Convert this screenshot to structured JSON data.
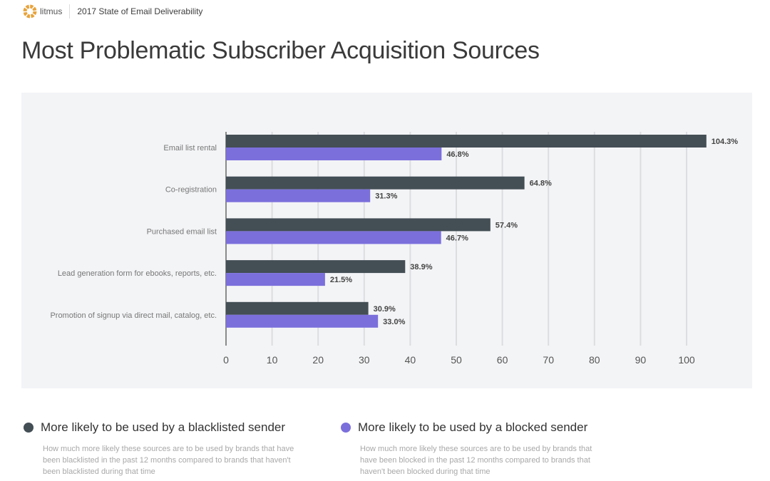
{
  "header": {
    "brand": "litmus",
    "report": "2017 State of Email Deliverability"
  },
  "title": "Most Problematic Subscriber Acquisition Sources",
  "colors": {
    "blacklisted": "#434e55",
    "blocked": "#7b6fdc"
  },
  "chart_data": {
    "type": "bar",
    "orientation": "horizontal",
    "grid": true,
    "xlim": [
      0,
      105
    ],
    "xticks": [
      0,
      10,
      20,
      30,
      40,
      50,
      60,
      70,
      80,
      90,
      100
    ],
    "categories": [
      "Email list rental",
      "Co-registration",
      "Purchased email list",
      "Lead generation form for ebooks, reports, etc.",
      "Promotion of signup via direct mail, catalog, etc."
    ],
    "series": [
      {
        "name": "More likely to be used by a blacklisted sender",
        "values": [
          104.3,
          64.8,
          57.4,
          38.9,
          30.9
        ],
        "labels": [
          "104.3%",
          "64.8%",
          "57.4%",
          "38.9%",
          "30.9%"
        ]
      },
      {
        "name": "More likely to be used by a blocked sender",
        "values": [
          46.8,
          31.3,
          46.7,
          21.5,
          33.0
        ],
        "labels": [
          "46.8%",
          "31.3%",
          "46.7%",
          "21.5%",
          "33.0%"
        ]
      }
    ]
  },
  "legend": [
    {
      "title": "More likely to be used by a blacklisted sender",
      "desc": "How much more likely these sources are to be used by brands that have been blacklisted in the past 12 months compared to brands that haven't been blacklisted during that time"
    },
    {
      "title": "More likely to be used by a blocked sender",
      "desc": "How much more likely these sources are to be used by brands that have been blocked in the past 12 months compared to brands that haven't been blocked during that time"
    }
  ]
}
